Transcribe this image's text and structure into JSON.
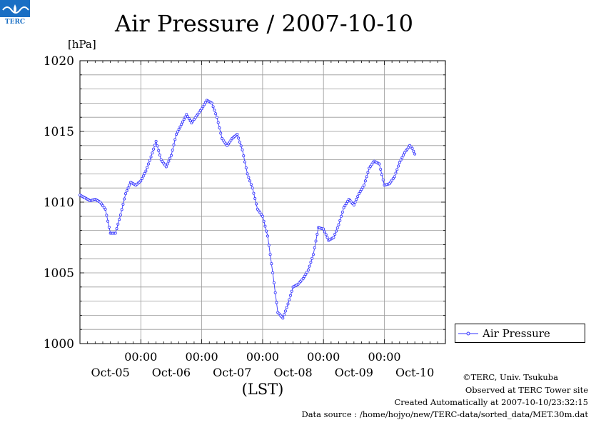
{
  "header": {
    "title": "Air Pressure / 2007-10-10",
    "unit": "[hPa]"
  },
  "chart_data": {
    "type": "line",
    "title": "Air Pressure / 2007-10-10",
    "ylabel": "[hPa]",
    "xlabel": "(LST)",
    "ylim": [
      1000,
      1020
    ],
    "yticks": [
      1000,
      1005,
      1010,
      1015,
      1020
    ],
    "xlim_days": [
      0,
      6
    ],
    "day_labels": [
      "Oct-05",
      "Oct-06",
      "Oct-07",
      "Oct-08",
      "Oct-09",
      "Oct-10"
    ],
    "time_labels": [
      "00:00",
      "00:00",
      "00:00",
      "00:00",
      "00:00"
    ],
    "grid": true,
    "legend_position": "right",
    "series": [
      {
        "name": "Air Pressure",
        "color": "#3333ff",
        "points": [
          [
            0.0,
            1010.5
          ],
          [
            0.083,
            1010.3
          ],
          [
            0.167,
            1010.1
          ],
          [
            0.25,
            1010.2
          ],
          [
            0.333,
            1010.0
          ],
          [
            0.417,
            1009.5
          ],
          [
            0.5,
            1007.8
          ],
          [
            0.583,
            1007.8
          ],
          [
            0.667,
            1009.1
          ],
          [
            0.75,
            1010.6
          ],
          [
            0.833,
            1011.4
          ],
          [
            0.917,
            1011.2
          ],
          [
            1.0,
            1011.5
          ],
          [
            1.083,
            1012.2
          ],
          [
            1.167,
            1013.2
          ],
          [
            1.25,
            1014.3
          ],
          [
            1.333,
            1013.0
          ],
          [
            1.417,
            1012.5
          ],
          [
            1.5,
            1013.3
          ],
          [
            1.583,
            1014.8
          ],
          [
            1.667,
            1015.5
          ],
          [
            1.75,
            1016.2
          ],
          [
            1.833,
            1015.6
          ],
          [
            1.917,
            1016.1
          ],
          [
            2.0,
            1016.6
          ],
          [
            2.083,
            1017.2
          ],
          [
            2.167,
            1017.0
          ],
          [
            2.25,
            1016.0
          ],
          [
            2.333,
            1014.5
          ],
          [
            2.417,
            1014.0
          ],
          [
            2.5,
            1014.5
          ],
          [
            2.583,
            1014.8
          ],
          [
            2.667,
            1013.7
          ],
          [
            2.75,
            1012.0
          ],
          [
            2.833,
            1011.0
          ],
          [
            2.917,
            1009.5
          ],
          [
            3.0,
            1009.0
          ],
          [
            3.083,
            1007.6
          ],
          [
            3.167,
            1005.0
          ],
          [
            3.25,
            1002.2
          ],
          [
            3.333,
            1001.8
          ],
          [
            3.417,
            1002.8
          ],
          [
            3.5,
            1004.0
          ],
          [
            3.583,
            1004.2
          ],
          [
            3.667,
            1004.6
          ],
          [
            3.75,
            1005.2
          ],
          [
            3.833,
            1006.3
          ],
          [
            3.917,
            1008.2
          ],
          [
            4.0,
            1008.1
          ],
          [
            4.083,
            1007.3
          ],
          [
            4.167,
            1007.5
          ],
          [
            4.25,
            1008.4
          ],
          [
            4.333,
            1009.6
          ],
          [
            4.417,
            1010.2
          ],
          [
            4.5,
            1009.8
          ],
          [
            4.583,
            1010.6
          ],
          [
            4.667,
            1011.2
          ],
          [
            4.75,
            1012.4
          ],
          [
            4.833,
            1012.9
          ],
          [
            4.917,
            1012.7
          ],
          [
            5.0,
            1011.2
          ],
          [
            5.083,
            1011.3
          ],
          [
            5.167,
            1011.8
          ],
          [
            5.25,
            1012.8
          ],
          [
            5.333,
            1013.5
          ],
          [
            5.417,
            1014.0
          ],
          [
            5.458,
            1013.8
          ],
          [
            5.5,
            1013.4
          ]
        ]
      }
    ]
  },
  "legend": {
    "label": "Air Pressure"
  },
  "credits": {
    "copyright": "©TERC, Univ. Tsukuba",
    "observed": "Observed at TERC Tower site",
    "created": "Created Automatically at 2007-10-10/23:32:15",
    "source": "Data source : /home/hojyo/new/TERC-data/sorted_data/MET.30m.dat"
  },
  "logo": {
    "text": "TERC",
    "color": "#1a6fc4"
  }
}
